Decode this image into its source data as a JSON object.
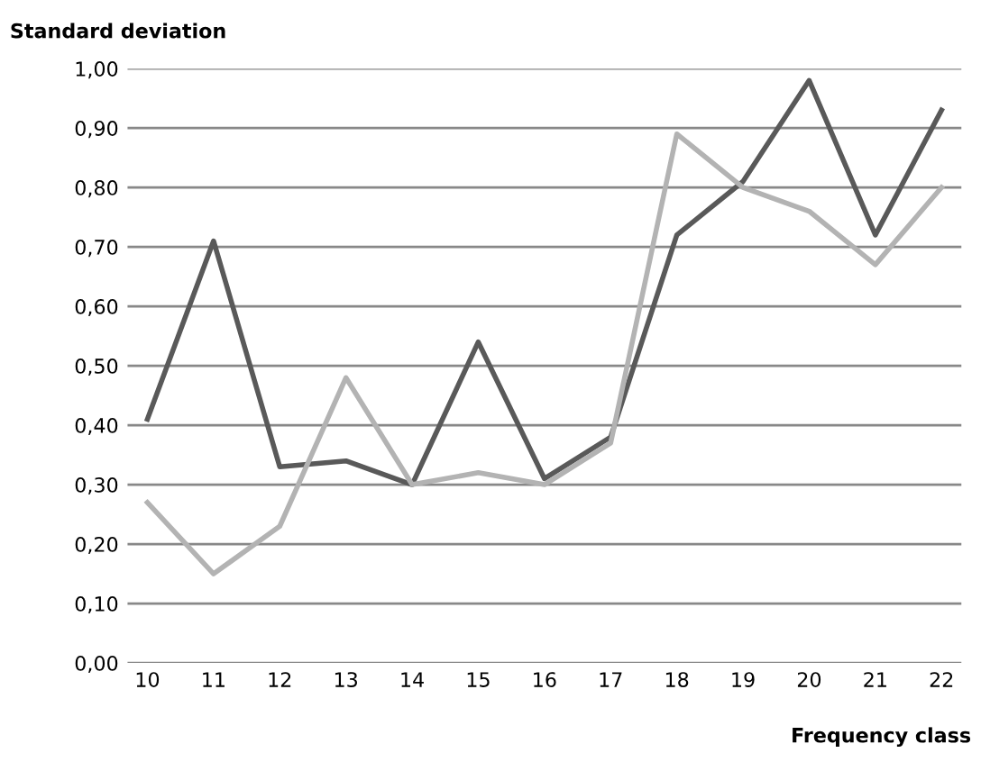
{
  "chart_data": {
    "type": "line",
    "ylabel": "Standard deviation",
    "xlabel": "Frequency class",
    "categories": [
      "10",
      "11",
      "12",
      "13",
      "14",
      "15",
      "16",
      "17",
      "18",
      "19",
      "20",
      "21",
      "22"
    ],
    "series": [
      {
        "color": "#595959",
        "values": [
          0.41,
          0.71,
          0.33,
          0.34,
          0.3,
          0.54,
          0.31,
          0.38,
          0.72,
          0.81,
          0.98,
          0.72,
          0.93
        ]
      },
      {
        "color": "#b3b3b3",
        "values": [
          0.27,
          0.15,
          0.23,
          0.48,
          0.3,
          0.32,
          0.3,
          0.37,
          0.89,
          0.8,
          0.76,
          0.67,
          0.8
        ]
      }
    ],
    "ylim": [
      0,
      1
    ],
    "yticks": [
      {
        "value": 0,
        "label": "0,00"
      },
      {
        "value": 0.1,
        "label": "0,10"
      },
      {
        "value": 0.2,
        "label": "0,20"
      },
      {
        "value": 0.3,
        "label": "0,30"
      },
      {
        "value": 0.4,
        "label": "0,40"
      },
      {
        "value": 0.5,
        "label": "0,50"
      },
      {
        "value": 0.6,
        "label": "0,60"
      },
      {
        "value": 0.7,
        "label": "0,70"
      },
      {
        "value": 0.8,
        "label": "0,80"
      },
      {
        "value": 0.9,
        "label": "0,90"
      },
      {
        "value": 1,
        "label": "1,00"
      }
    ],
    "grid": "y",
    "legend": false,
    "marker": "none",
    "line_style": "solid"
  }
}
